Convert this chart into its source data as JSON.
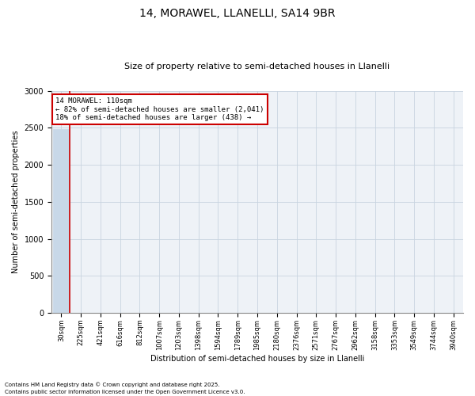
{
  "title": "14, MORAWEL, LLANELLI, SA14 9BR",
  "subtitle": "Size of property relative to semi-detached houses in Llanelli",
  "xlabel": "Distribution of semi-detached houses by size in Llanelli",
  "ylabel": "Number of semi-detached properties",
  "footnote1": "Contains HM Land Registry data © Crown copyright and database right 2025.",
  "footnote2": "Contains public sector information licensed under the Open Government Licence v3.0.",
  "annotation_title": "14 MORAWEL: 110sqm",
  "annotation_line1": "← 82% of semi-detached houses are smaller (2,041)",
  "annotation_line2": "18% of semi-detached houses are larger (438) →",
  "property_size": 110,
  "bar_color": "#c8d8e8",
  "redline_color": "#cc0000",
  "annotation_box_color": "#cc0000",
  "background_color": "#eef2f7",
  "grid_color": "#c8d4e0",
  "ylim": [
    0,
    3000
  ],
  "yticks": [
    0,
    500,
    1000,
    1500,
    2000,
    2500,
    3000
  ],
  "bin_labels": [
    "30sqm",
    "225sqm",
    "421sqm",
    "616sqm",
    "812sqm",
    "1007sqm",
    "1203sqm",
    "1398sqm",
    "1594sqm",
    "1789sqm",
    "1985sqm",
    "2180sqm",
    "2376sqm",
    "2571sqm",
    "2767sqm",
    "2962sqm",
    "3158sqm",
    "3353sqm",
    "3549sqm",
    "3744sqm",
    "3940sqm"
  ],
  "bar_values": [
    2479,
    0,
    0,
    0,
    0,
    0,
    0,
    0,
    0,
    0,
    0,
    0,
    0,
    0,
    0,
    0,
    0,
    0,
    0,
    0,
    0
  ],
  "title_fontsize": 10,
  "subtitle_fontsize": 8,
  "axis_label_fontsize": 7,
  "tick_fontsize": 6,
  "annotation_fontsize": 6.5,
  "footnote_fontsize": 5
}
